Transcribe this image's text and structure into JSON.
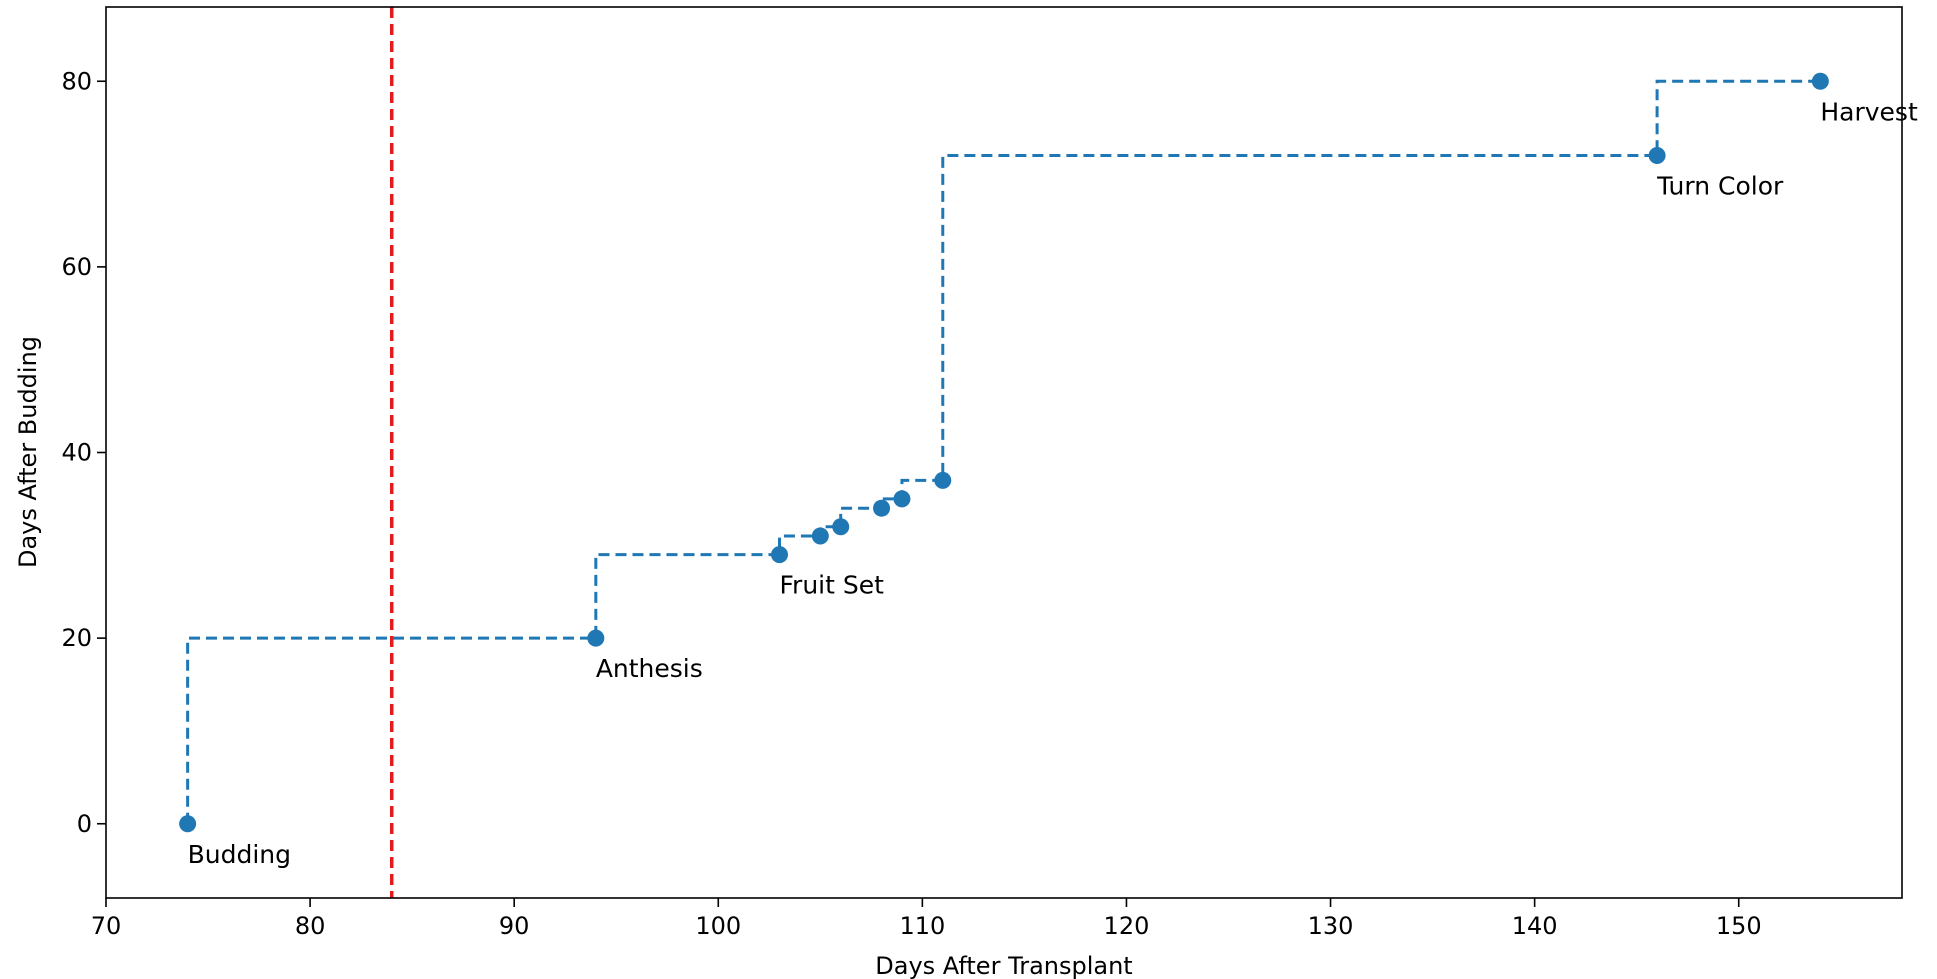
{
  "chart_data": {
    "type": "line",
    "title": "",
    "xlabel": "Days After Transplant",
    "ylabel": "Days After Budding",
    "xlim": [
      70,
      158
    ],
    "ylim": [
      -8,
      88
    ],
    "xticks": [
      70,
      80,
      90,
      100,
      110,
      120,
      130,
      140,
      150
    ],
    "yticks": [
      0,
      20,
      40,
      60,
      80
    ],
    "grid": false,
    "step_style": "post",
    "series": [
      {
        "x": [
          74,
          94,
          103,
          105,
          106,
          108,
          109,
          111,
          146,
          154
        ],
        "y": [
          0,
          20,
          29,
          31,
          32,
          34,
          35,
          37,
          72,
          80
        ],
        "color": "#1f77b4",
        "line_style": "dashed",
        "markers": true
      }
    ],
    "annotations": [
      {
        "x": 74,
        "y": 0,
        "text": "Budding"
      },
      {
        "x": 94,
        "y": 20,
        "text": "Anthesis"
      },
      {
        "x": 103,
        "y": 29,
        "text": "Fruit Set"
      },
      {
        "x": 146,
        "y": 72,
        "text": "Turn Color"
      },
      {
        "x": 154,
        "y": 80,
        "text": "Harvest"
      }
    ],
    "reference_lines": [
      {
        "orientation": "vertical",
        "x": 84,
        "color": "#e41a1c",
        "line_style": "dashed"
      }
    ]
  }
}
